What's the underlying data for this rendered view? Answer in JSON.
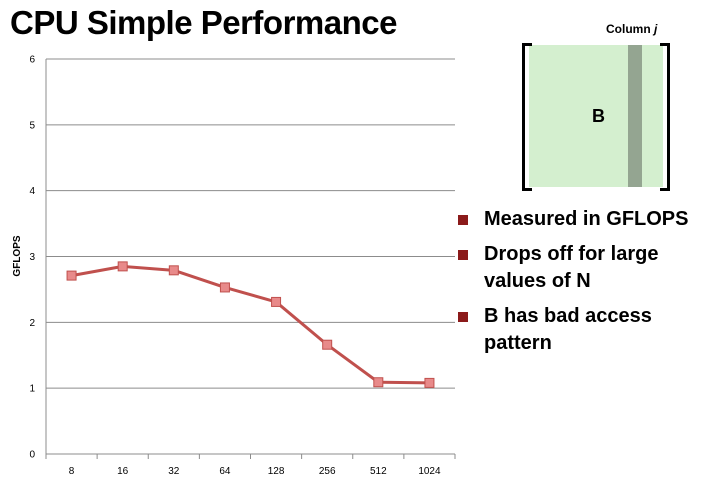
{
  "title": "CPU Simple Performance",
  "chart_data": {
    "type": "line",
    "title": "CPU Simple Performance",
    "xlabel": "",
    "ylabel": "GFLOPS",
    "ylim": [
      0,
      6
    ],
    "yticks": [
      "0",
      "1",
      "2",
      "3",
      "4",
      "5",
      "6"
    ],
    "grid": true,
    "categories": [
      "8",
      "16",
      "32",
      "64",
      "128",
      "256",
      "512",
      "1024"
    ],
    "series": [
      {
        "name": "GFLOPS",
        "values": [
          2.71,
          2.85,
          2.79,
          2.53,
          2.31,
          1.66,
          1.09,
          1.08
        ],
        "color": "#c0504d",
        "marker_color": "#e88a8a"
      }
    ]
  },
  "matrix": {
    "column_label": "Column",
    "column_var": "j",
    "label": "B",
    "fill_color": "#d4efcf",
    "column_color": "#94a591"
  },
  "bullets": [
    "Measured in GFLOPS",
    "Drops off for large values of N",
    "B has bad access pattern"
  ],
  "bullet_color": "#8b1a1a"
}
